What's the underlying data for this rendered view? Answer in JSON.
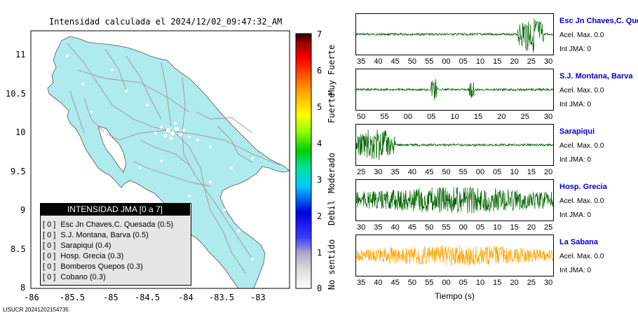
{
  "map_title": "Intensidad calculada el 2024/12/02_09:47:32_AM",
  "footer": "LISUCR 20241202154735",
  "colors": {
    "land": "#afeaec",
    "ocean": "#ffffff",
    "road": "#999999",
    "dot": "#ffffff"
  },
  "map_axes": {
    "x_ticks": [
      "-86",
      "-85.5",
      "-85",
      "-84.5",
      "-84",
      "-83.5",
      "-83"
    ],
    "y_ticks": [
      "11",
      "10.5",
      "10",
      "9.5",
      "9",
      "8.5",
      "8"
    ],
    "xlim": [
      -86,
      -82.6
    ],
    "ylim": [
      8,
      11.3
    ]
  },
  "colorbar": {
    "ticks": [
      "0",
      "1",
      "2",
      "3",
      "4",
      "5",
      "6",
      "7"
    ],
    "labels": [
      "No sentido",
      "Debil",
      "Moderado",
      "Fuerte",
      "Muy Fuerte"
    ]
  },
  "legend": {
    "header": "INTENSIDAD JMA [0 a 7]",
    "rows": [
      {
        "badge": "[ 0 ]",
        "text": "Esc Jn Chaves,C. Quesada (0.5)"
      },
      {
        "badge": "[ 0 ]",
        "text": "S.J. Montana, Barva (0.5)"
      },
      {
        "badge": "[ 0 ]",
        "text": "Sarapiqui (0.4)"
      },
      {
        "badge": "[ 0 ]",
        "text": "Hosp. Grecia (0.3)"
      },
      {
        "badge": "[ 0 ]",
        "text": "Bomberos Quepos (0.3)"
      },
      {
        "badge": "[ 0 ]",
        "text": "Cobano (0.3)"
      }
    ]
  },
  "waveforms": [
    {
      "name": "Esc Jn Chaves,C. Ques",
      "accel": "Acel. Max. 0.0",
      "jma": "Int JMA: 0",
      "color": "#006400",
      "ticks": [
        "35",
        "40",
        "45",
        "50",
        "55",
        "00",
        "05",
        "10",
        "15",
        "20",
        "25",
        "30"
      ]
    },
    {
      "name": "S.J. Montana, Barva",
      "accel": "Acel. Max. 0.0",
      "jma": "Int JMA: 0",
      "color": "#006400",
      "ticks": [
        "50",
        "55",
        "00",
        "05",
        "10",
        "15",
        "20",
        "25",
        "30"
      ]
    },
    {
      "name": "Sarapiqui",
      "accel": "Acel. Max. 0.0",
      "jma": "Int JMA: 0",
      "color": "#006400",
      "ticks": [
        "25",
        "30",
        "35",
        "40",
        "45",
        "50",
        "55",
        "00",
        "05",
        "10",
        "15",
        "20"
      ]
    },
    {
      "name": "Hosp. Grecia",
      "accel": "Acel. Max. 0.0",
      "jma": "Int JMA: 0",
      "color": "#006400",
      "ticks": [
        "30",
        "35",
        "40",
        "45",
        "50",
        "55",
        "00",
        "05",
        "10",
        "15",
        "20",
        "25"
      ]
    },
    {
      "name": "La Sabana",
      "accel": "Acel. Max. 0.0",
      "jma": "Int JMA: 0",
      "color": "#ffa500",
      "ticks": [
        "35",
        "40",
        "45",
        "50",
        "55",
        "00",
        "05",
        "10",
        "15",
        "20",
        "25",
        "30"
      ]
    }
  ],
  "wave_xlabel": "Tiempo (s)",
  "chart_data": [
    {
      "type": "map",
      "title": "Intensidad calculada el 2024/12/02_09:47:32_AM",
      "xlim": [
        -86,
        -82.6
      ],
      "ylim": [
        8,
        11.3
      ],
      "x_ticks": [
        -86,
        -85.5,
        -85,
        -84.5,
        -84,
        -83.5,
        -83
      ],
      "y_ticks": [
        11,
        10.5,
        10,
        9.5,
        9,
        8.5,
        8
      ],
      "colorbar_range": [
        0,
        7
      ]
    },
    {
      "type": "line",
      "series": [
        {
          "name": "Esc Jn Chaves,C. Ques"
        },
        {
          "name": "S.J. Montana, Barva"
        },
        {
          "name": "Sarapiqui"
        },
        {
          "name": "Hosp. Grecia"
        },
        {
          "name": "La Sabana"
        }
      ],
      "xlabel": "Tiempo (s)"
    }
  ]
}
